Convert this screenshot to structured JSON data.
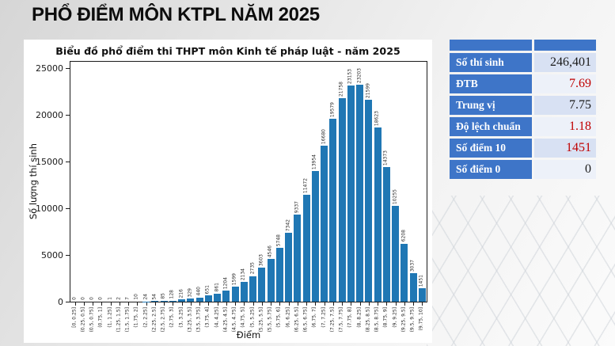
{
  "page": {
    "title": "PHỔ ĐIỂM MÔN KTPL NĂM 2025"
  },
  "chart_data": {
    "type": "bar",
    "title": "Biểu đồ phổ điểm thi THPT môn Kinh tế pháp luật - năm 2025",
    "xlabel": "Điểm",
    "ylabel": "Số lượng thí sinh",
    "ylim": [
      0,
      25000
    ],
    "yticks": [
      0,
      5000,
      10000,
      15000,
      20000,
      25000
    ],
    "grid": false,
    "legend": null,
    "bar_color": "#1f77b4",
    "value_labels_shown": true,
    "categories": [
      "[0, 0.25]",
      "(0.25, 0.5]",
      "(0.5, 0.75]",
      "(0.75, 1]",
      "(1, 1.25]",
      "(1.25, 1.5]",
      "(1.5, 1.75]",
      "(1.75, 2]",
      "(2, 2.25]",
      "(2.25, 2.5]",
      "(2.5, 2.75]",
      "(2.75, 3]",
      "(3, 3.25]",
      "(3.25, 3.5]",
      "(3.5, 3.75]",
      "(3.75, 4]",
      "(4, 4.25]",
      "(4.25, 4.5]",
      "(4.5, 4.75]",
      "(4.75, 5]",
      "(5, 5.25]",
      "(5.25, 5.5]",
      "(5.5, 5.75]",
      "(5.75, 6]",
      "(6, 6.25]",
      "(6.25, 6.5]",
      "(6.5, 6.75]",
      "(6.75, 7]",
      "(7, 7.25]",
      "(7.25, 7.5]",
      "(7.5, 7.75]",
      "(7.75, 8]",
      "(8, 8.25]",
      "(8.25, 8.5]",
      "(8.5, 8.75]",
      "(8.75, 9]",
      "(9, 9.25]",
      "(9.25, 9.5]",
      "(9.5, 9.75]",
      "(9.75, 10]"
    ],
    "values": [
      0,
      0,
      0,
      0,
      1,
      2,
      7,
      10,
      24,
      54,
      85,
      128,
      216,
      329,
      440,
      651,
      861,
      1204,
      1599,
      2134,
      2735,
      3603,
      4546,
      5748,
      7342,
      9337,
      11472,
      13954,
      16680,
      19579,
      21758,
      23153,
      23203,
      21599,
      18623,
      14373,
      10255,
      6208,
      3037,
      1451
    ]
  },
  "stats_table": {
    "rows": [
      {
        "label": "Số thí sinh",
        "value": "246,401",
        "color": "#1a1a1a"
      },
      {
        "label": "ĐTB",
        "value": "7.69",
        "color": "#c00000"
      },
      {
        "label": "Trung vị",
        "value": "7.75",
        "color": "#1a1a1a"
      },
      {
        "label": "Độ lệch chuẩn",
        "value": "1.18",
        "color": "#c00000"
      },
      {
        "label": "Số điểm 10",
        "value": "1451",
        "color": "#c00000"
      },
      {
        "label": "Số điểm 0",
        "value": "0",
        "color": "#1a1a1a"
      }
    ]
  },
  "colors": {
    "bar": "#1f77b4",
    "table_blue": "#3e75c8",
    "value_red": "#c00000",
    "row_bg_a": "#d8e1f3",
    "row_bg_b": "#edf1f9",
    "background_top": "#d6d6d6",
    "background_bottom": "#fbfbfb"
  }
}
